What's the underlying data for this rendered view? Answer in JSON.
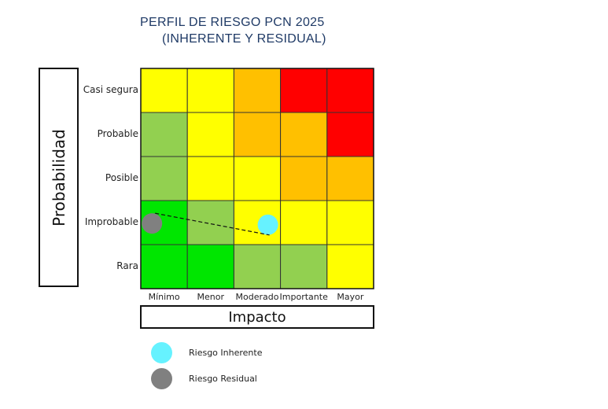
{
  "chart_data": {
    "type": "heatmap",
    "title": "PERFIL DE RIESGO PCN 2025",
    "subtitle": "(INHERENTE Y RESIDUAL)",
    "xlabel": "Impacto",
    "ylabel": "Probabilidad",
    "x_categories": [
      "Mínimo",
      "Menor",
      "Moderado",
      "Importante",
      "Mayor"
    ],
    "y_categories": [
      "Casi segura",
      "Probable",
      "Posible",
      "Improbable",
      "Rara"
    ],
    "cell_colors": [
      [
        "#ffff00",
        "#ffff00",
        "#ffc000",
        "#ff0000",
        "#ff0000"
      ],
      [
        "#92d050",
        "#ffff00",
        "#ffc000",
        "#ffc000",
        "#ff0000"
      ],
      [
        "#92d050",
        "#ffff00",
        "#ffff00",
        "#ffc000",
        "#ffc000"
      ],
      [
        "#00e600",
        "#92d050",
        "#ffff00",
        "#ffff00",
        "#ffff00"
      ],
      [
        "#00e600",
        "#00e600",
        "#92d050",
        "#92d050",
        "#ffff00"
      ]
    ],
    "series": [
      {
        "name": "Riesgo Inherente",
        "color": "#66f2ff",
        "x": "Moderado",
        "y": "Improbable"
      },
      {
        "name": "Riesgo Residual",
        "color": "#808080",
        "x": "Mínimo",
        "y": "Improbable"
      }
    ],
    "connector": "dashed"
  },
  "legend": {
    "inherent_label": "Riesgo Inherente",
    "residual_label": "Riesgo Residual"
  }
}
